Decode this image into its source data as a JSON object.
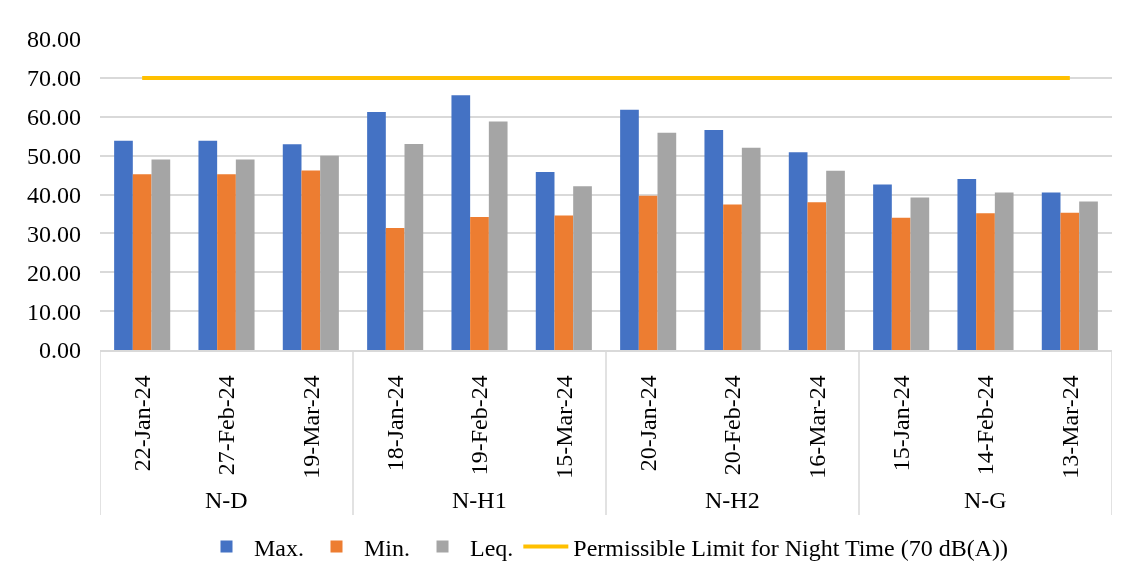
{
  "chart_data": {
    "type": "bar",
    "categories": [
      "22-Jan-24",
      "27-Feb-24",
      "19-Mar-24",
      "18-Jan-24",
      "19-Feb-24",
      "15-Mar-24",
      "20-Jan-24",
      "20-Feb-24",
      "16-Mar-24",
      "15-Jan-24",
      "14-Feb-24",
      "13-Mar-24"
    ],
    "series": [
      {
        "name": "Max.",
        "color": "#4472c4",
        "values": [
          53.8,
          53.8,
          52.9,
          61.2,
          65.5,
          45.8,
          61.8,
          56.6,
          50.9,
          42.6,
          44.0,
          40.5
        ]
      },
      {
        "name": "Min.",
        "color": "#ed7d31",
        "values": [
          45.2,
          45.2,
          46.2,
          31.4,
          34.2,
          34.6,
          39.7,
          37.4,
          38.0,
          34.0,
          35.2,
          35.3
        ]
      },
      {
        "name": "Leq.",
        "color": "#a5a5a5",
        "values": [
          49.0,
          49.0,
          50.0,
          53.0,
          58.8,
          42.1,
          55.9,
          52.0,
          46.1,
          39.2,
          40.5,
          38.2
        ]
      },
      {
        "name": "Permissible Limit for Night Time (70 dB(A))",
        "type": "line",
        "color": "#ffc000",
        "values": [
          70,
          70,
          70,
          70,
          70,
          70,
          70,
          70,
          70,
          70,
          70,
          70
        ]
      }
    ],
    "ylim": [
      0,
      80
    ],
    "yticks": [
      {
        "value": 0,
        "label": "0.00"
      },
      {
        "value": 10,
        "label": "10.00"
      },
      {
        "value": 20,
        "label": "20.00"
      },
      {
        "value": 30,
        "label": "30.00"
      },
      {
        "value": 40,
        "label": "40.00"
      },
      {
        "value": 50,
        "label": "50.00"
      },
      {
        "value": 60,
        "label": "60.00"
      },
      {
        "value": 70,
        "label": "70.00"
      },
      {
        "value": 80,
        "label": "80.00"
      }
    ],
    "grid": "y",
    "legend": "bottom",
    "annotations": [
      "N-D",
      "N-H1",
      "N-H2",
      "N-G"
    ]
  }
}
